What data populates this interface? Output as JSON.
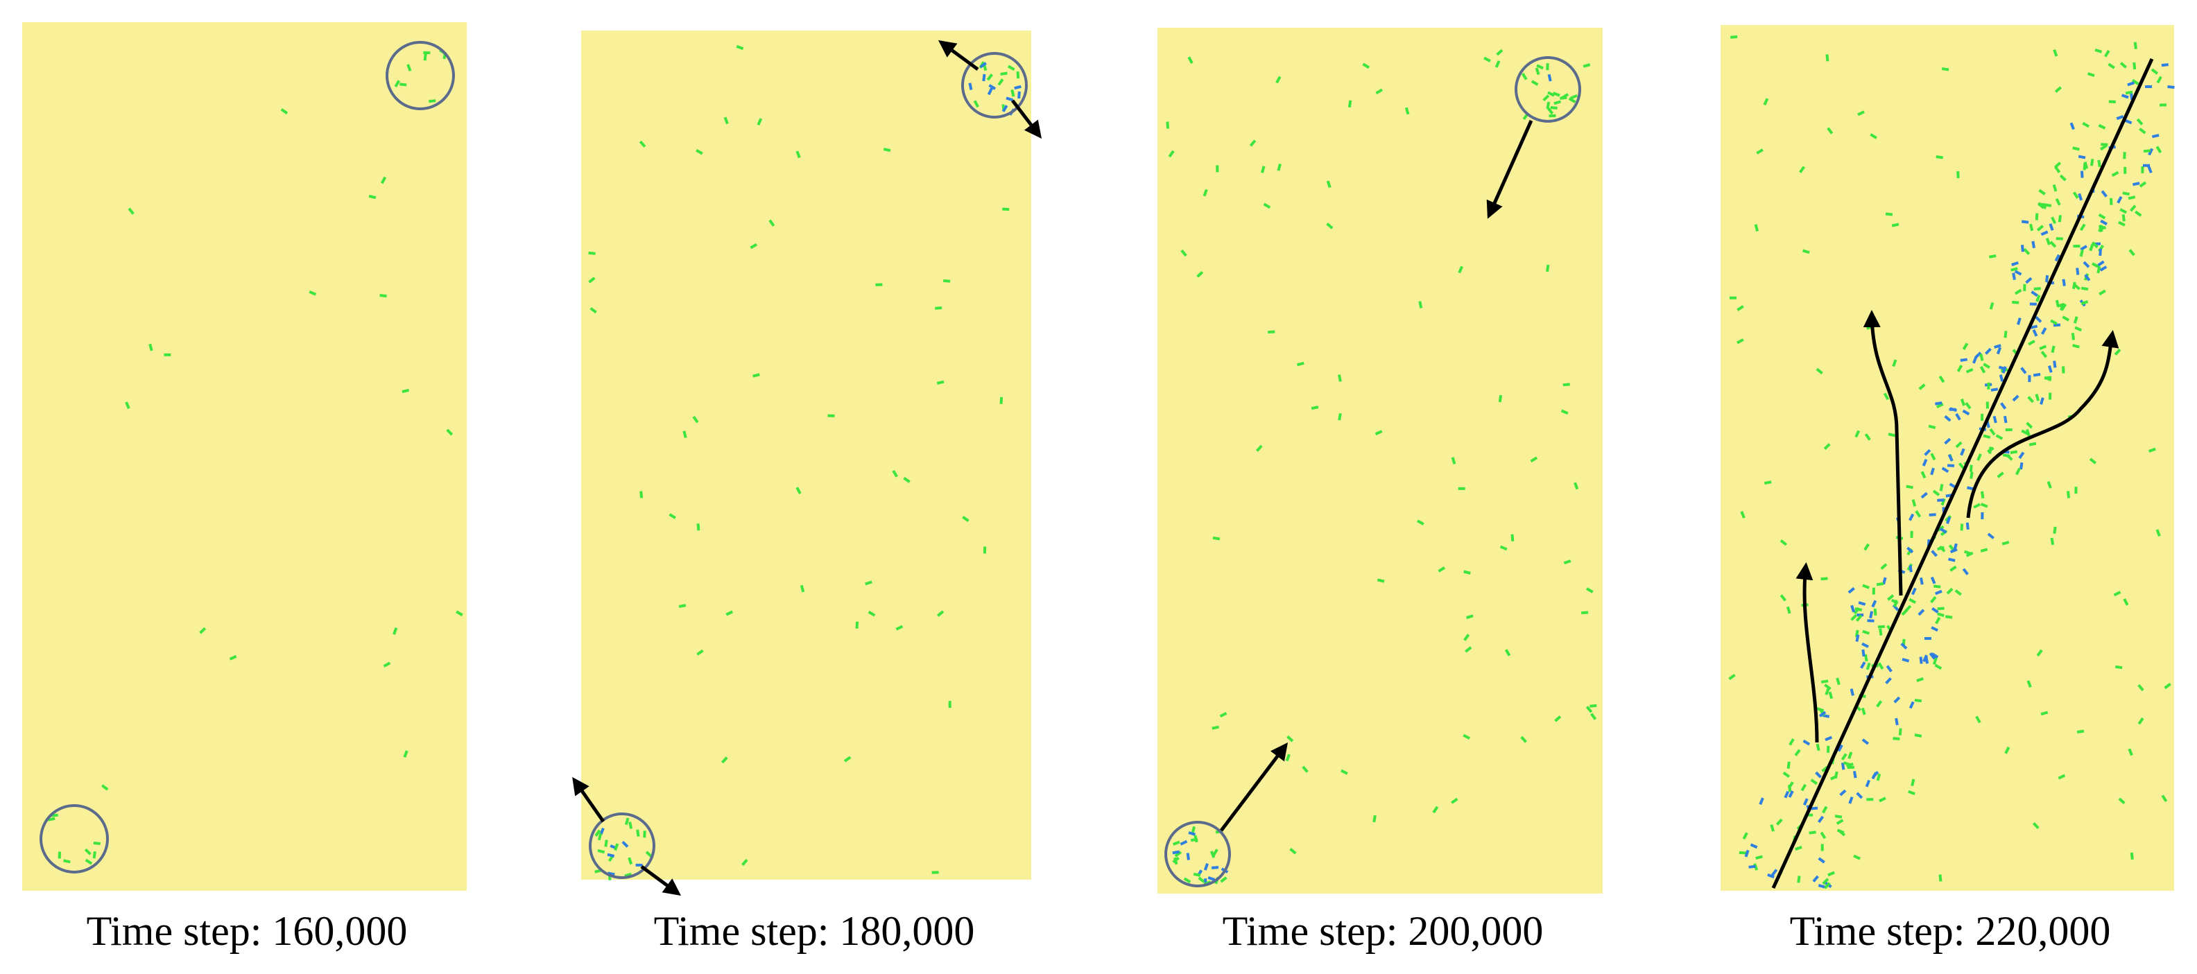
{
  "panels": [
    {
      "caption": "Time step: 160,000"
    },
    {
      "caption": "Time step: 180,000"
    },
    {
      "caption": "Time step: 200,000"
    },
    {
      "caption": "Time step: 220,000"
    }
  ]
}
